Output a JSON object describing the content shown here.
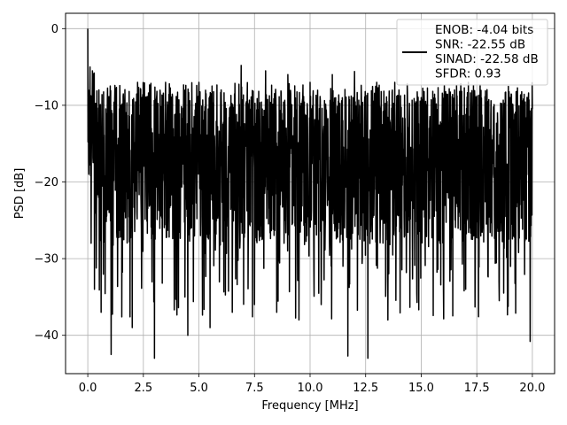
{
  "chart_data": {
    "type": "line",
    "title": "",
    "xlabel": "Frequency [MHz]",
    "ylabel": "PSD [dB]",
    "xlim": [
      -1.0,
      21.0
    ],
    "ylim": [
      -45.0,
      2.0
    ],
    "xticks": [
      0.0,
      2.5,
      5.0,
      7.5,
      10.0,
      12.5,
      15.0,
      17.5,
      20.0
    ],
    "xtick_labels": [
      "0.0",
      "2.5",
      "5.0",
      "7.5",
      "10.0",
      "12.5",
      "15.0",
      "17.5",
      "20.0"
    ],
    "yticks": [
      0,
      -10,
      -20,
      -30,
      -40
    ],
    "ytick_labels": [
      "0",
      "−10",
      "−20",
      "−30",
      "−40"
    ],
    "grid": true,
    "legend_position": "upper-right",
    "legend_entries": [
      "ENOB: -4.04 bits",
      "SNR: -22.55 dB",
      "SINAD: -22.58 dB",
      "SFDR: 0.93"
    ],
    "series": [
      {
        "color": "#000000",
        "description_points": [
          [
            0.0,
            0.0
          ],
          [
            0.02,
            -12
          ],
          [
            0.05,
            -19
          ],
          [
            0.1,
            -5
          ],
          [
            0.15,
            -28
          ],
          [
            0.2,
            -9
          ],
          [
            0.3,
            -34
          ],
          [
            0.5,
            -8
          ],
          [
            0.6,
            -37
          ],
          [
            1.0,
            -10
          ],
          [
            1.05,
            -42.5
          ],
          [
            1.5,
            -10
          ],
          [
            2.0,
            -39
          ],
          [
            2.5,
            -8
          ],
          [
            3.0,
            -43
          ],
          [
            3.5,
            -7
          ],
          [
            4.0,
            -35
          ],
          [
            4.5,
            -40
          ],
          [
            5.0,
            -7
          ],
          [
            5.5,
            -39
          ],
          [
            6.0,
            -8
          ],
          [
            6.5,
            -37
          ],
          [
            6.9,
            -4.8
          ],
          [
            7.5,
            -36
          ],
          [
            8.0,
            -5.5
          ],
          [
            8.5,
            -37
          ],
          [
            9.0,
            -6
          ],
          [
            9.5,
            -38
          ],
          [
            10.0,
            -7
          ],
          [
            10.5,
            -36
          ],
          [
            11.0,
            -6
          ],
          [
            11.7,
            -42.7
          ],
          [
            12.0,
            -5.6
          ],
          [
            12.6,
            -43
          ],
          [
            13.0,
            -7
          ],
          [
            13.5,
            -38
          ],
          [
            14.0,
            -8
          ],
          [
            14.8,
            -34.5
          ],
          [
            15.0,
            -9
          ],
          [
            16.0,
            -34
          ],
          [
            16.5,
            -8
          ],
          [
            17.0,
            -34
          ],
          [
            17.5,
            -9
          ],
          [
            18.5,
            -33
          ],
          [
            19.0,
            -9
          ],
          [
            19.9,
            -40.8
          ],
          [
            20.0,
            -10.5
          ]
        ],
        "n_points": 2000,
        "upper_envelope_db": -7.5,
        "lower_typical_db": -28.0,
        "dc_peak_db": 0.0
      }
    ]
  }
}
